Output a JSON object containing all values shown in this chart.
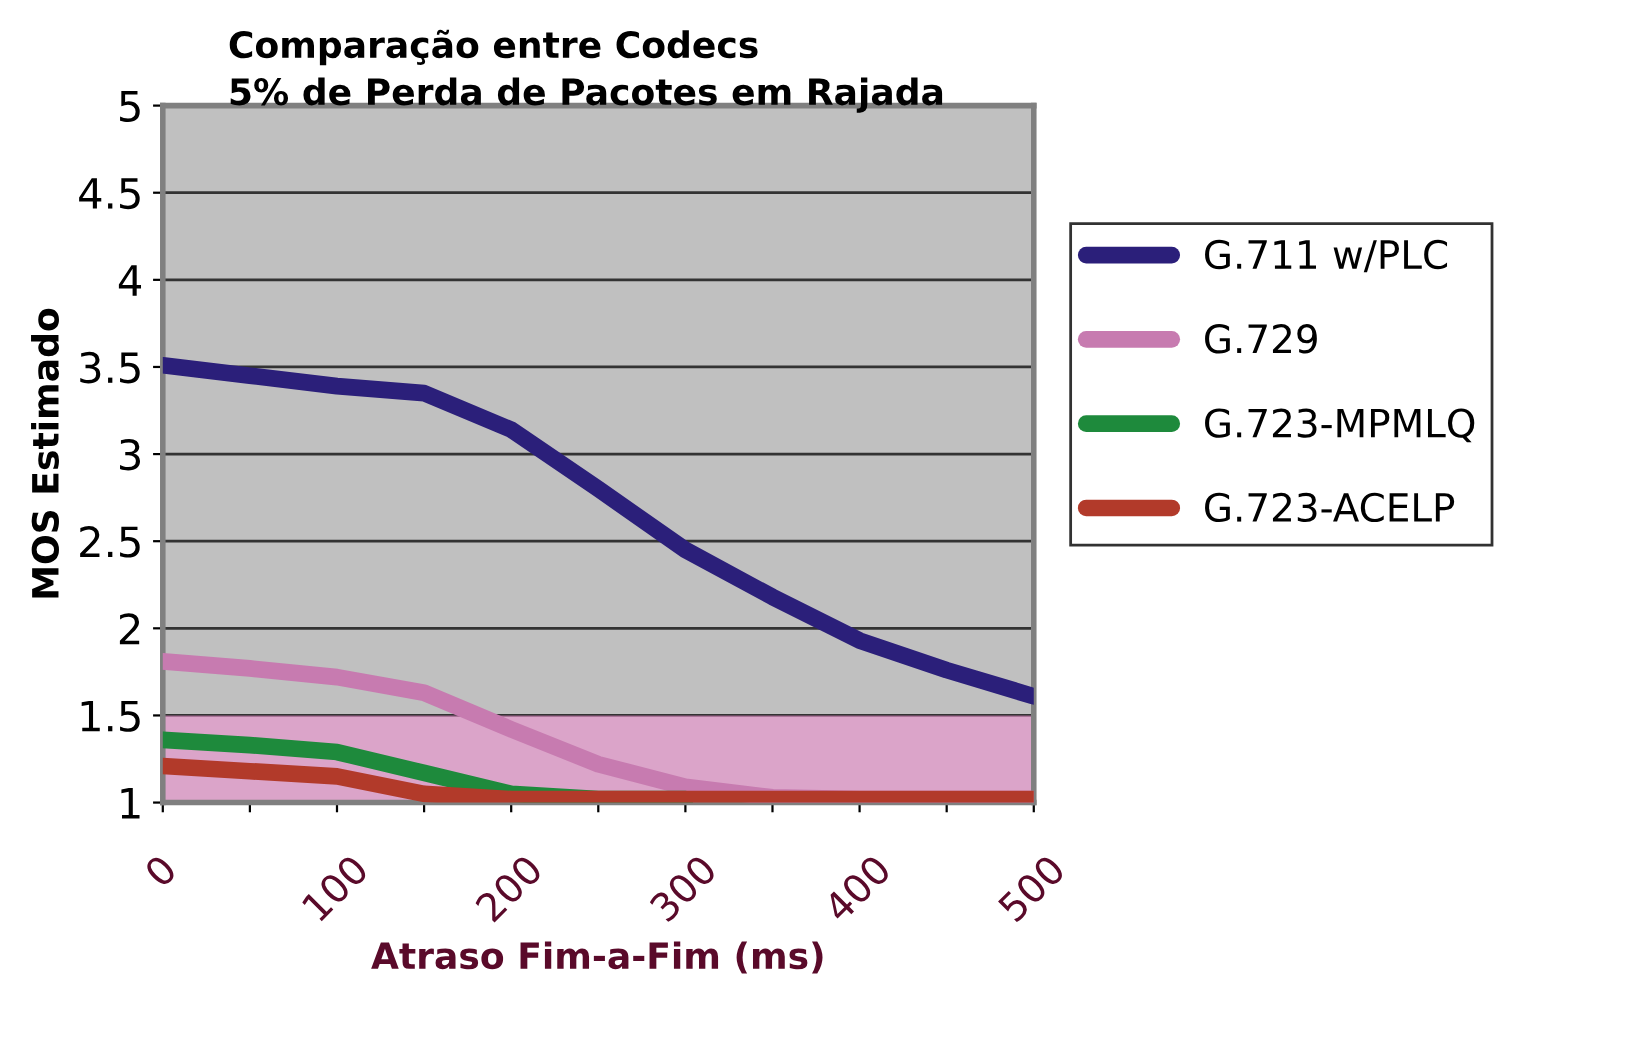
{
  "chart_data": {
    "type": "line",
    "title": "Comparação entre Codecs",
    "subtitle": "5% de Perda de Pacotes em Rajada",
    "xlabel": "Atraso Fim-a-Fim (ms)",
    "ylabel": "MOS Estimado",
    "x": [
      0,
      50,
      100,
      150,
      200,
      250,
      300,
      350,
      400,
      450,
      500
    ],
    "series": [
      {
        "name": "G.711 w/PLC",
        "color": "#2b1f7a",
        "values": [
          3.51,
          3.45,
          3.39,
          3.35,
          3.14,
          2.8,
          2.45,
          2.18,
          1.93,
          1.76,
          1.61
        ]
      },
      {
        "name": "G.729",
        "color": "#c77bb0",
        "values": [
          1.81,
          1.77,
          1.72,
          1.63,
          1.42,
          1.22,
          1.09,
          1.03,
          1.02,
          1.02,
          1.02
        ]
      },
      {
        "name": "G.723-MPMLQ",
        "color": "#1e8a3c",
        "values": [
          1.36,
          1.33,
          1.29,
          1.17,
          1.05,
          1.02,
          1.02,
          null,
          null,
          null,
          null
        ]
      },
      {
        "name": "G.723-ACELP",
        "color": "#b23a2a",
        "values": [
          1.21,
          1.18,
          1.15,
          1.05,
          1.02,
          1.02,
          1.02,
          1.02,
          1.02,
          1.02,
          1.02
        ]
      }
    ],
    "xlim": [
      0,
      500
    ],
    "ylim": [
      1,
      5
    ],
    "xticks": [
      0,
      {
        "value": 50,
        "label": null
      },
      100,
      {
        "value": 150,
        "label": null
      },
      200,
      {
        "value": 250,
        "label": null
      },
      300,
      {
        "value": 350,
        "label": null
      },
      400,
      {
        "value": 450,
        "label": null
      },
      500
    ],
    "yticks": [
      1,
      1.5,
      2,
      2.5,
      3,
      3.5,
      4,
      4.5,
      5
    ],
    "bands": [
      {
        "axis": "y",
        "from": 1,
        "to": 1.5,
        "color": "#f08ccf"
      }
    ],
    "grid": "y",
    "legend": "right",
    "marker": "none",
    "line_style": "solid"
  }
}
